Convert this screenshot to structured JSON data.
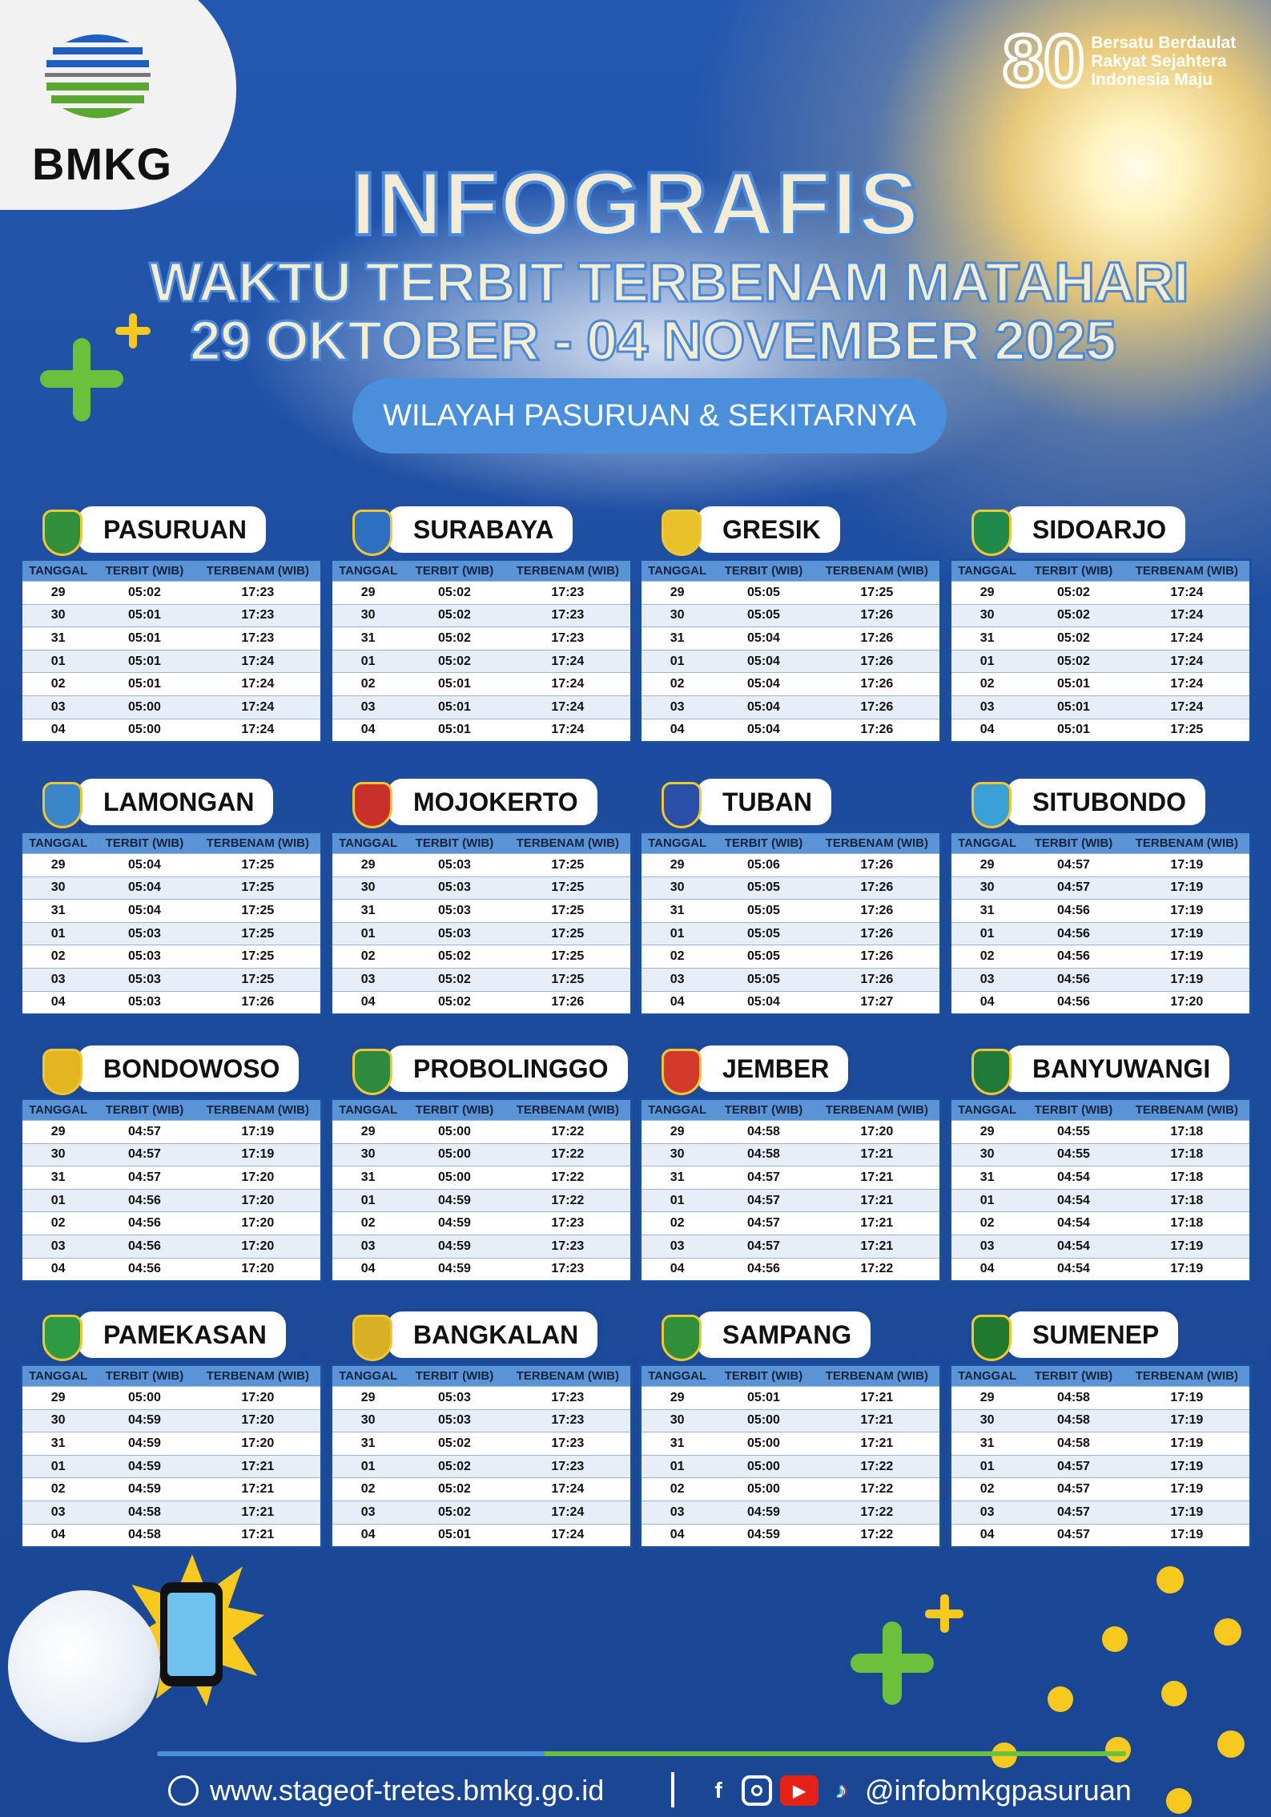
{
  "header": {
    "brand": "BMKG",
    "anniversary_number": "80",
    "anniversary_tagline": [
      "Bersatu Berdaulat",
      "Rakyat Sejahtera",
      "Indonesia Maju"
    ],
    "title": "INFOGRAFIS",
    "subtitle": "WAKTU TERBIT TERBENAM MATAHARI",
    "date_range": "29 OKTOBER - 04 NOVEMBER  2025",
    "region": "WILAYAH PASURUAN & SEKITARNYA"
  },
  "table_headers": [
    "TANGGAL",
    "TERBIT (WIB)",
    "TERBENAM (WIB)"
  ],
  "dates": [
    "29",
    "30",
    "31",
    "01",
    "02",
    "03",
    "04"
  ],
  "regions": [
    {
      "name": "PASURUAN",
      "emblem": "#2f8f3a",
      "rise": [
        "05:02",
        "05:01",
        "05:01",
        "05:01",
        "05:01",
        "05:00",
        "05:00"
      ],
      "set": [
        "17:23",
        "17:23",
        "17:23",
        "17:24",
        "17:24",
        "17:24",
        "17:24"
      ]
    },
    {
      "name": "SURABAYA",
      "emblem": "#2d6fc0",
      "rise": [
        "05:02",
        "05:02",
        "05:02",
        "05:02",
        "05:01",
        "05:01",
        "05:01"
      ],
      "set": [
        "17:23",
        "17:23",
        "17:23",
        "17:24",
        "17:24",
        "17:24",
        "17:24"
      ]
    },
    {
      "name": "GRESIK",
      "emblem": "#e6c12a",
      "rise": [
        "05:05",
        "05:05",
        "05:04",
        "05:04",
        "05:04",
        "05:04",
        "05:04"
      ],
      "set": [
        "17:25",
        "17:26",
        "17:26",
        "17:26",
        "17:26",
        "17:26",
        "17:26"
      ]
    },
    {
      "name": "SIDOARJO",
      "emblem": "#1f8a4a",
      "rise": [
        "05:02",
        "05:02",
        "05:02",
        "05:02",
        "05:01",
        "05:01",
        "05:01"
      ],
      "set": [
        "17:24",
        "17:24",
        "17:24",
        "17:24",
        "17:24",
        "17:24",
        "17:25"
      ]
    },
    {
      "name": "LAMONGAN",
      "emblem": "#3b86c8",
      "rise": [
        "05:04",
        "05:04",
        "05:04",
        "05:03",
        "05:03",
        "05:03",
        "05:03"
      ],
      "set": [
        "17:25",
        "17:25",
        "17:25",
        "17:25",
        "17:25",
        "17:25",
        "17:26"
      ]
    },
    {
      "name": "MOJOKERTO",
      "emblem": "#c9302c",
      "rise": [
        "05:03",
        "05:03",
        "05:03",
        "05:03",
        "05:02",
        "05:02",
        "05:02"
      ],
      "set": [
        "17:25",
        "17:25",
        "17:25",
        "17:25",
        "17:25",
        "17:25",
        "17:26"
      ]
    },
    {
      "name": "TUBAN",
      "emblem": "#2a4fa8",
      "rise": [
        "05:06",
        "05:05",
        "05:05",
        "05:05",
        "05:05",
        "05:05",
        "05:04"
      ],
      "set": [
        "17:26",
        "17:26",
        "17:26",
        "17:26",
        "17:26",
        "17:26",
        "17:27"
      ]
    },
    {
      "name": "SITUBONDO",
      "emblem": "#3aa0d8",
      "rise": [
        "04:57",
        "04:57",
        "04:56",
        "04:56",
        "04:56",
        "04:56",
        "04:56"
      ],
      "set": [
        "17:19",
        "17:19",
        "17:19",
        "17:19",
        "17:19",
        "17:19",
        "17:20"
      ]
    },
    {
      "name": "BONDOWOSO",
      "emblem": "#e3b520",
      "rise": [
        "04:57",
        "04:57",
        "04:57",
        "04:56",
        "04:56",
        "04:56",
        "04:56"
      ],
      "set": [
        "17:19",
        "17:19",
        "17:20",
        "17:20",
        "17:20",
        "17:20",
        "17:20"
      ]
    },
    {
      "name": "PROBOLINGGO",
      "emblem": "#2e8a3e",
      "rise": [
        "05:00",
        "05:00",
        "05:00",
        "04:59",
        "04:59",
        "04:59",
        "04:59"
      ],
      "set": [
        "17:22",
        "17:22",
        "17:22",
        "17:22",
        "17:23",
        "17:23",
        "17:23"
      ]
    },
    {
      "name": "JEMBER",
      "emblem": "#d33a2c",
      "rise": [
        "04:58",
        "04:58",
        "04:57",
        "04:57",
        "04:57",
        "04:57",
        "04:56"
      ],
      "set": [
        "17:20",
        "17:21",
        "17:21",
        "17:21",
        "17:21",
        "17:21",
        "17:22"
      ]
    },
    {
      "name": "BANYUWANGI",
      "emblem": "#1f7a3a",
      "rise": [
        "04:55",
        "04:55",
        "04:54",
        "04:54",
        "04:54",
        "04:54",
        "04:54"
      ],
      "set": [
        "17:18",
        "17:18",
        "17:18",
        "17:18",
        "17:18",
        "17:19",
        "17:19"
      ]
    },
    {
      "name": "PAMEKASAN",
      "emblem": "#2f9a44",
      "rise": [
        "05:00",
        "04:59",
        "04:59",
        "04:59",
        "04:59",
        "04:58",
        "04:58"
      ],
      "set": [
        "17:20",
        "17:20",
        "17:20",
        "17:21",
        "17:21",
        "17:21",
        "17:21"
      ]
    },
    {
      "name": "BANGKALAN",
      "emblem": "#d9b024",
      "rise": [
        "05:03",
        "05:03",
        "05:02",
        "05:02",
        "05:02",
        "05:02",
        "05:01"
      ],
      "set": [
        "17:23",
        "17:23",
        "17:23",
        "17:23",
        "17:24",
        "17:24",
        "17:24"
      ]
    },
    {
      "name": "SAMPANG",
      "emblem": "#2f8f3a",
      "rise": [
        "05:01",
        "05:00",
        "05:00",
        "05:00",
        "05:00",
        "04:59",
        "04:59"
      ],
      "set": [
        "17:21",
        "17:21",
        "17:21",
        "17:22",
        "17:22",
        "17:22",
        "17:22"
      ]
    },
    {
      "name": "SUMENEP",
      "emblem": "#1f7a2e",
      "rise": [
        "04:58",
        "04:58",
        "04:58",
        "04:57",
        "04:57",
        "04:57",
        "04:57"
      ],
      "set": [
        "17:19",
        "17:19",
        "17:19",
        "17:19",
        "17:19",
        "17:19",
        "17:19"
      ]
    }
  ],
  "footer": {
    "website": "www.stageof-tretes.bmkg.go.id",
    "social_handle": "@infobmkgpasuruan",
    "social_icons": [
      "facebook-icon",
      "instagram-icon",
      "youtube-icon",
      "tiktok-icon"
    ]
  },
  "colors": {
    "brand_blue": "#1d4c9e",
    "accent_green": "#6cc13c",
    "accent_yellow": "#f7c81d",
    "table_header": "#5a93d6"
  }
}
